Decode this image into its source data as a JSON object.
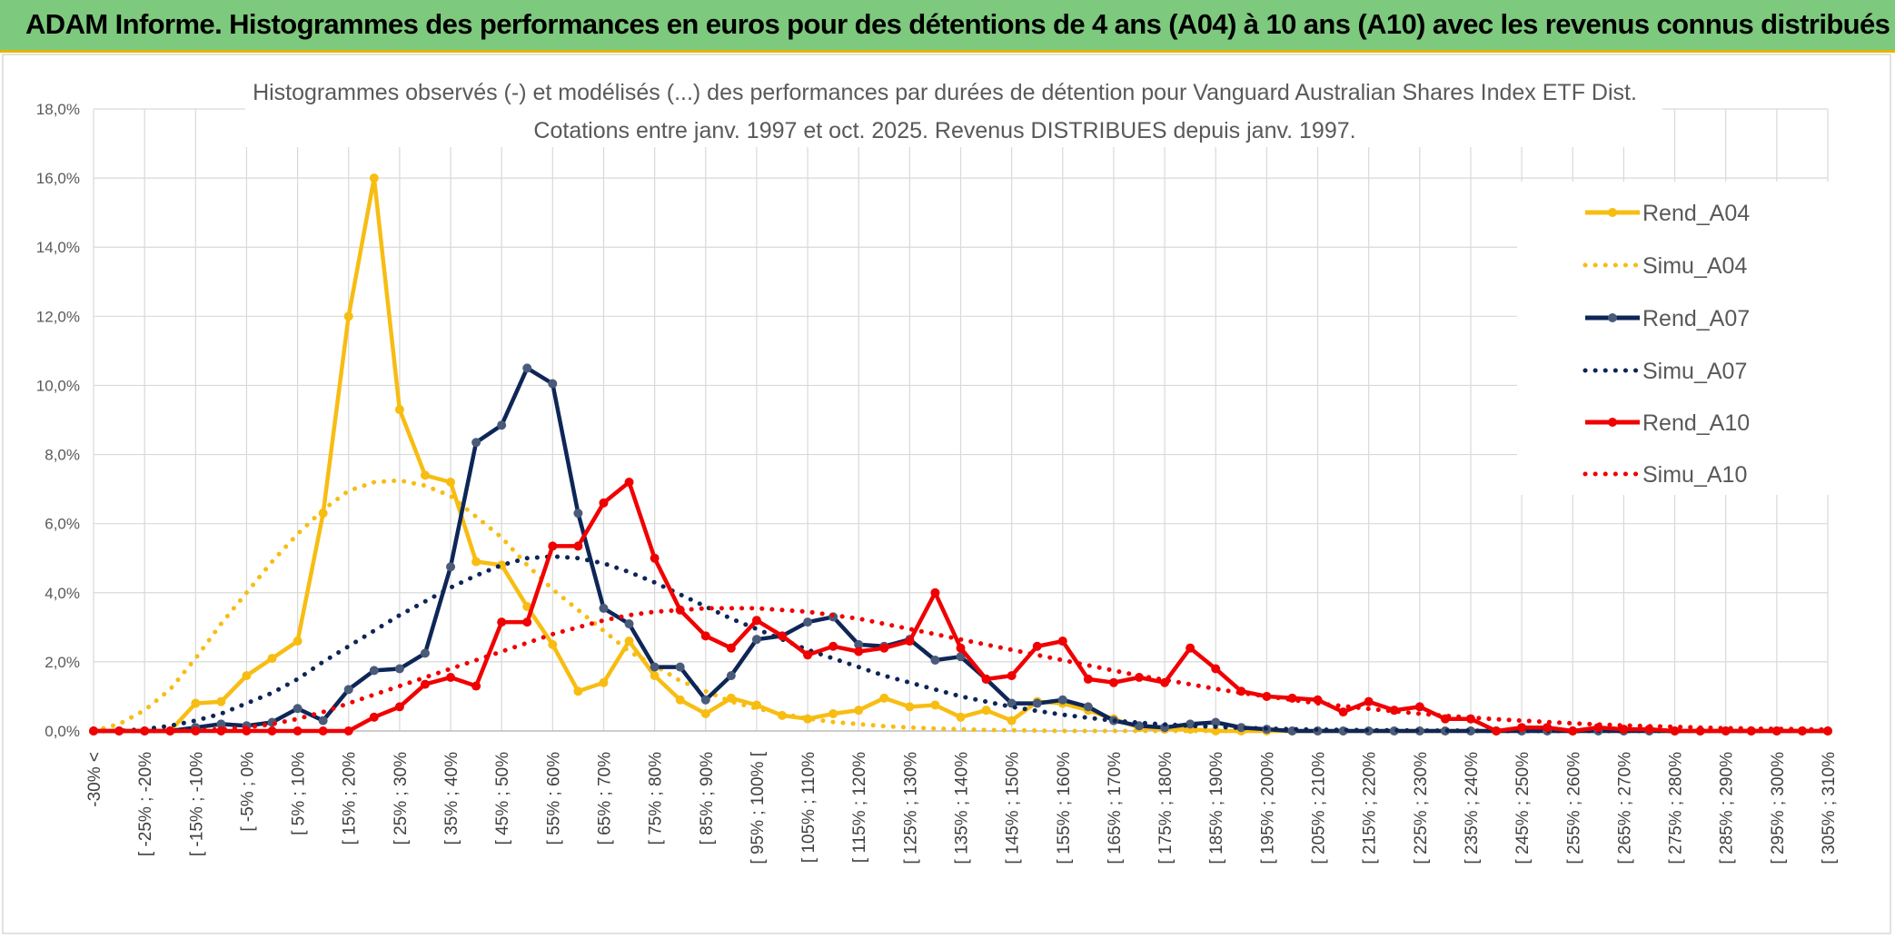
{
  "banner": {
    "title": "ADAM Informe. Histogrammes des performances en euros pour des détentions de 4 ans (A04) à 10 ans (A10) avec les revenus connus distribués"
  },
  "colors": {
    "banner_bg": "#7dc97d",
    "banner_accent": "#e8b400",
    "A04": "#f7bd13",
    "A07": "#0e2657",
    "A07_marker": "#4a5b7a",
    "A10": "#f00000",
    "grid": "#d9d9d9"
  },
  "chart_data": {
    "type": "line",
    "title_line1": "Histogrammes observés (-) et modélisés (...) des performances par durées de détention pour Vanguard Australian Shares Index ETF Dist.",
    "title_line2": "Cotations entre janv. 1997 et oct. 2025. Revenus DISTRIBUES depuis janv. 1997.",
    "ylim": [
      0,
      18
    ],
    "y_ticks": [
      0,
      2,
      4,
      6,
      8,
      10,
      12,
      14,
      16,
      18
    ],
    "y_tick_labels": [
      "0,0%",
      "2,0%",
      "4,0%",
      "6,0%",
      "8,0%",
      "10,0%",
      "12,0%",
      "14,0%",
      "16,0%",
      "18,0%"
    ],
    "x_count": 69,
    "x_labels": [
      {
        "i": 0,
        "text": "-30% <"
      },
      {
        "i": 2,
        "text": "[ -25% ; -20%"
      },
      {
        "i": 4,
        "text": "[ -15% ; -10%"
      },
      {
        "i": 6,
        "text": "[ -5% ; 0%"
      },
      {
        "i": 8,
        "text": "[ 5% ; 10%"
      },
      {
        "i": 10,
        "text": "[ 15% ; 20%"
      },
      {
        "i": 12,
        "text": "[ 25% ; 30%"
      },
      {
        "i": 14,
        "text": "[ 35% ; 40%"
      },
      {
        "i": 16,
        "text": "[ 45% ; 50%"
      },
      {
        "i": 18,
        "text": "[ 55% ; 60%"
      },
      {
        "i": 20,
        "text": "[ 65% ; 70%"
      },
      {
        "i": 22,
        "text": "[ 75% ; 80%"
      },
      {
        "i": 24,
        "text": "[ 85% ; 90%"
      },
      {
        "i": 26,
        "text": "[ 95% ; 100% ["
      },
      {
        "i": 28,
        "text": "[ 105% ; 110%"
      },
      {
        "i": 30,
        "text": "[ 115% ; 120%"
      },
      {
        "i": 32,
        "text": "[ 125% ; 130%"
      },
      {
        "i": 34,
        "text": "[ 135% ; 140%"
      },
      {
        "i": 36,
        "text": "[ 145% ; 150%"
      },
      {
        "i": 38,
        "text": "[ 155% ; 160%"
      },
      {
        "i": 40,
        "text": "[ 165% ; 170%"
      },
      {
        "i": 42,
        "text": "[ 175% ; 180%"
      },
      {
        "i": 44,
        "text": "[ 185% ; 190%"
      },
      {
        "i": 46,
        "text": "[ 195% ; 200%"
      },
      {
        "i": 48,
        "text": "[ 205% ; 210%"
      },
      {
        "i": 50,
        "text": "[ 215% ; 220%"
      },
      {
        "i": 52,
        "text": "[ 225% ; 230%"
      },
      {
        "i": 54,
        "text": "[ 235% ; 240%"
      },
      {
        "i": 56,
        "text": "[ 245% ; 250%"
      },
      {
        "i": 58,
        "text": "[ 255% ; 260%"
      },
      {
        "i": 60,
        "text": "[ 265% ; 270%"
      },
      {
        "i": 62,
        "text": "[ 275% ; 280%"
      },
      {
        "i": 64,
        "text": "[ 285% ; 290%"
      },
      {
        "i": 66,
        "text": "[ 295% ; 300%"
      },
      {
        "i": 68,
        "text": "[ 305% ; 310%"
      }
    ],
    "legend_position": "right",
    "grid": true,
    "series": [
      {
        "name": "Rend_A04",
        "style": "solid",
        "color": "#f7bd13",
        "marker_color": "#f7bd13",
        "values": [
          0,
          0,
          0,
          0,
          0.8,
          0.85,
          1.6,
          2.1,
          2.6,
          6.3,
          12,
          16,
          9.3,
          7.4,
          7.2,
          4.9,
          4.8,
          3.6,
          2.5,
          1.15,
          1.4,
          2.6,
          1.6,
          0.9,
          0.5,
          0.95,
          0.75,
          0.45,
          0.35,
          0.5,
          0.6,
          0.95,
          0.7,
          0.75,
          0.4,
          0.6,
          0.3,
          0.85,
          0.8,
          0.6,
          0.35,
          0.1,
          0.05,
          0.05,
          0,
          0,
          0,
          0,
          0,
          0,
          0,
          0,
          0,
          0,
          0,
          0,
          0,
          0,
          0,
          0,
          0,
          0,
          0,
          0,
          0,
          0,
          0,
          0,
          0
        ]
      },
      {
        "name": "Simu_A04",
        "style": "dotted",
        "color": "#f7bd13",
        "values": [
          0,
          0.2,
          0.6,
          1.2,
          2.1,
          3.1,
          4.0,
          4.9,
          5.7,
          6.4,
          6.95,
          7.2,
          7.25,
          7.1,
          6.8,
          6.2,
          5.6,
          4.8,
          4.1,
          3.5,
          2.9,
          2.3,
          1.9,
          1.45,
          1.15,
          0.85,
          0.65,
          0.5,
          0.36,
          0.26,
          0.2,
          0.14,
          0.1,
          0.07,
          0.05,
          0.03,
          0.02,
          0.01,
          0,
          0,
          0,
          0,
          0,
          0,
          0,
          0,
          0,
          0,
          0,
          0,
          0,
          0,
          0,
          0,
          0,
          0,
          0,
          0,
          0,
          0,
          0,
          0,
          0,
          0,
          0,
          0,
          0,
          0,
          0
        ]
      },
      {
        "name": "Rend_A07",
        "style": "solid",
        "color": "#0e2657",
        "marker_color": "#4a5b7a",
        "values": [
          0,
          0,
          0,
          0,
          0.1,
          0.2,
          0.15,
          0.25,
          0.65,
          0.3,
          1.2,
          1.75,
          1.8,
          2.25,
          4.75,
          8.35,
          8.85,
          10.5,
          10.05,
          6.3,
          3.55,
          3.1,
          1.85,
          1.85,
          0.9,
          1.6,
          2.65,
          2.75,
          3.15,
          3.3,
          2.5,
          2.45,
          2.65,
          2.05,
          2.15,
          1.5,
          0.8,
          0.8,
          0.9,
          0.7,
          0.3,
          0.15,
          0.1,
          0.2,
          0.25,
          0.1,
          0.05,
          0,
          0,
          0,
          0,
          0,
          0,
          0,
          0,
          0,
          0,
          0,
          0,
          0,
          0,
          0,
          0,
          0,
          0,
          0,
          0,
          0,
          0
        ]
      },
      {
        "name": "Simu_A07",
        "style": "dotted",
        "color": "#0e2657",
        "values": [
          0,
          0,
          0.05,
          0.15,
          0.3,
          0.5,
          0.8,
          1.1,
          1.5,
          2.0,
          2.45,
          2.9,
          3.35,
          3.75,
          4.15,
          4.5,
          4.8,
          5.0,
          5.05,
          5.0,
          4.85,
          4.6,
          4.3,
          3.95,
          3.6,
          3.25,
          2.95,
          2.65,
          2.35,
          2.1,
          1.85,
          1.6,
          1.4,
          1.2,
          1.0,
          0.85,
          0.7,
          0.58,
          0.47,
          0.38,
          0.3,
          0.24,
          0.19,
          0.15,
          0.12,
          0.09,
          0.07,
          0.05,
          0.04,
          0.03,
          0.02,
          0.02,
          0.01,
          0.01,
          0.01,
          0,
          0,
          0,
          0,
          0,
          0,
          0,
          0,
          0,
          0,
          0,
          0,
          0,
          0
        ]
      },
      {
        "name": "Rend_A10",
        "style": "solid",
        "color": "#f00000",
        "marker_color": "#f00000",
        "values": [
          0,
          0,
          0,
          0,
          0,
          0,
          0,
          0,
          0,
          0,
          0,
          0.4,
          0.7,
          1.35,
          1.55,
          1.3,
          3.15,
          3.15,
          5.35,
          5.35,
          6.6,
          7.2,
          5.0,
          3.5,
          2.75,
          2.4,
          3.2,
          2.75,
          2.2,
          2.45,
          2.3,
          2.4,
          2.6,
          4.0,
          2.4,
          1.5,
          1.6,
          2.45,
          2.6,
          1.5,
          1.4,
          1.55,
          1.4,
          2.4,
          1.8,
          1.15,
          1.0,
          0.95,
          0.9,
          0.55,
          0.85,
          0.6,
          0.7,
          0.35,
          0.35,
          0,
          0.1,
          0.1,
          0,
          0.1,
          0.05,
          0.05,
          0,
          0,
          0,
          0,
          0,
          0,
          0
        ]
      },
      {
        "name": "Simu_A10",
        "style": "dotted",
        "color": "#f00000",
        "values": [
          0,
          0,
          0,
          0,
          0.02,
          0.05,
          0.1,
          0.2,
          0.35,
          0.55,
          0.8,
          1.05,
          1.3,
          1.55,
          1.8,
          2.05,
          2.3,
          2.55,
          2.8,
          3.0,
          3.2,
          3.35,
          3.45,
          3.5,
          3.55,
          3.55,
          3.55,
          3.5,
          3.45,
          3.35,
          3.25,
          3.1,
          2.95,
          2.8,
          2.65,
          2.5,
          2.35,
          2.2,
          2.05,
          1.9,
          1.75,
          1.6,
          1.48,
          1.35,
          1.22,
          1.1,
          1.0,
          0.9,
          0.8,
          0.72,
          0.64,
          0.57,
          0.5,
          0.44,
          0.39,
          0.34,
          0.3,
          0.26,
          0.22,
          0.19,
          0.16,
          0.14,
          0.12,
          0.1,
          0.08,
          0.07,
          0.06,
          0.05,
          0.04
        ]
      }
    ]
  }
}
